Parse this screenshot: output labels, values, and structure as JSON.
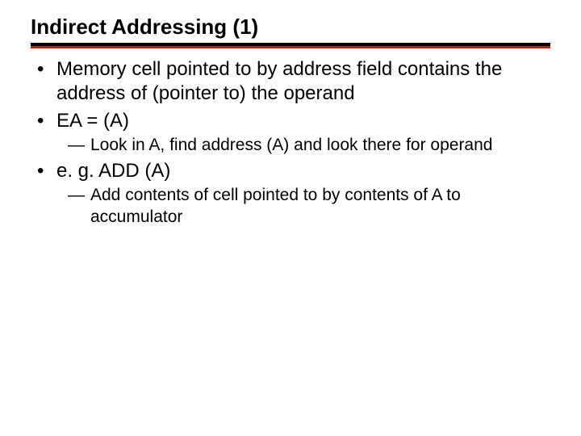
{
  "title": "Indirect Addressing (1)",
  "colors": {
    "text": "#000000",
    "rule_top": "#000000",
    "rule_bottom": "#ff0000",
    "background": "#ffffff"
  },
  "typography": {
    "title_fontsize": 26,
    "title_weight": 900,
    "body_fontsize": 24,
    "sub_fontsize": 21
  },
  "bullets": {
    "b1": "Memory cell pointed to by address field contains the address of (pointer to) the operand",
    "b2": "EA = (A)",
    "b2_sub1": "Look in A, find address (A) and look there for operand",
    "b3": "e. g. ADD (A)",
    "b3_sub1": "Add contents of cell pointed to by contents of A to accumulator"
  }
}
